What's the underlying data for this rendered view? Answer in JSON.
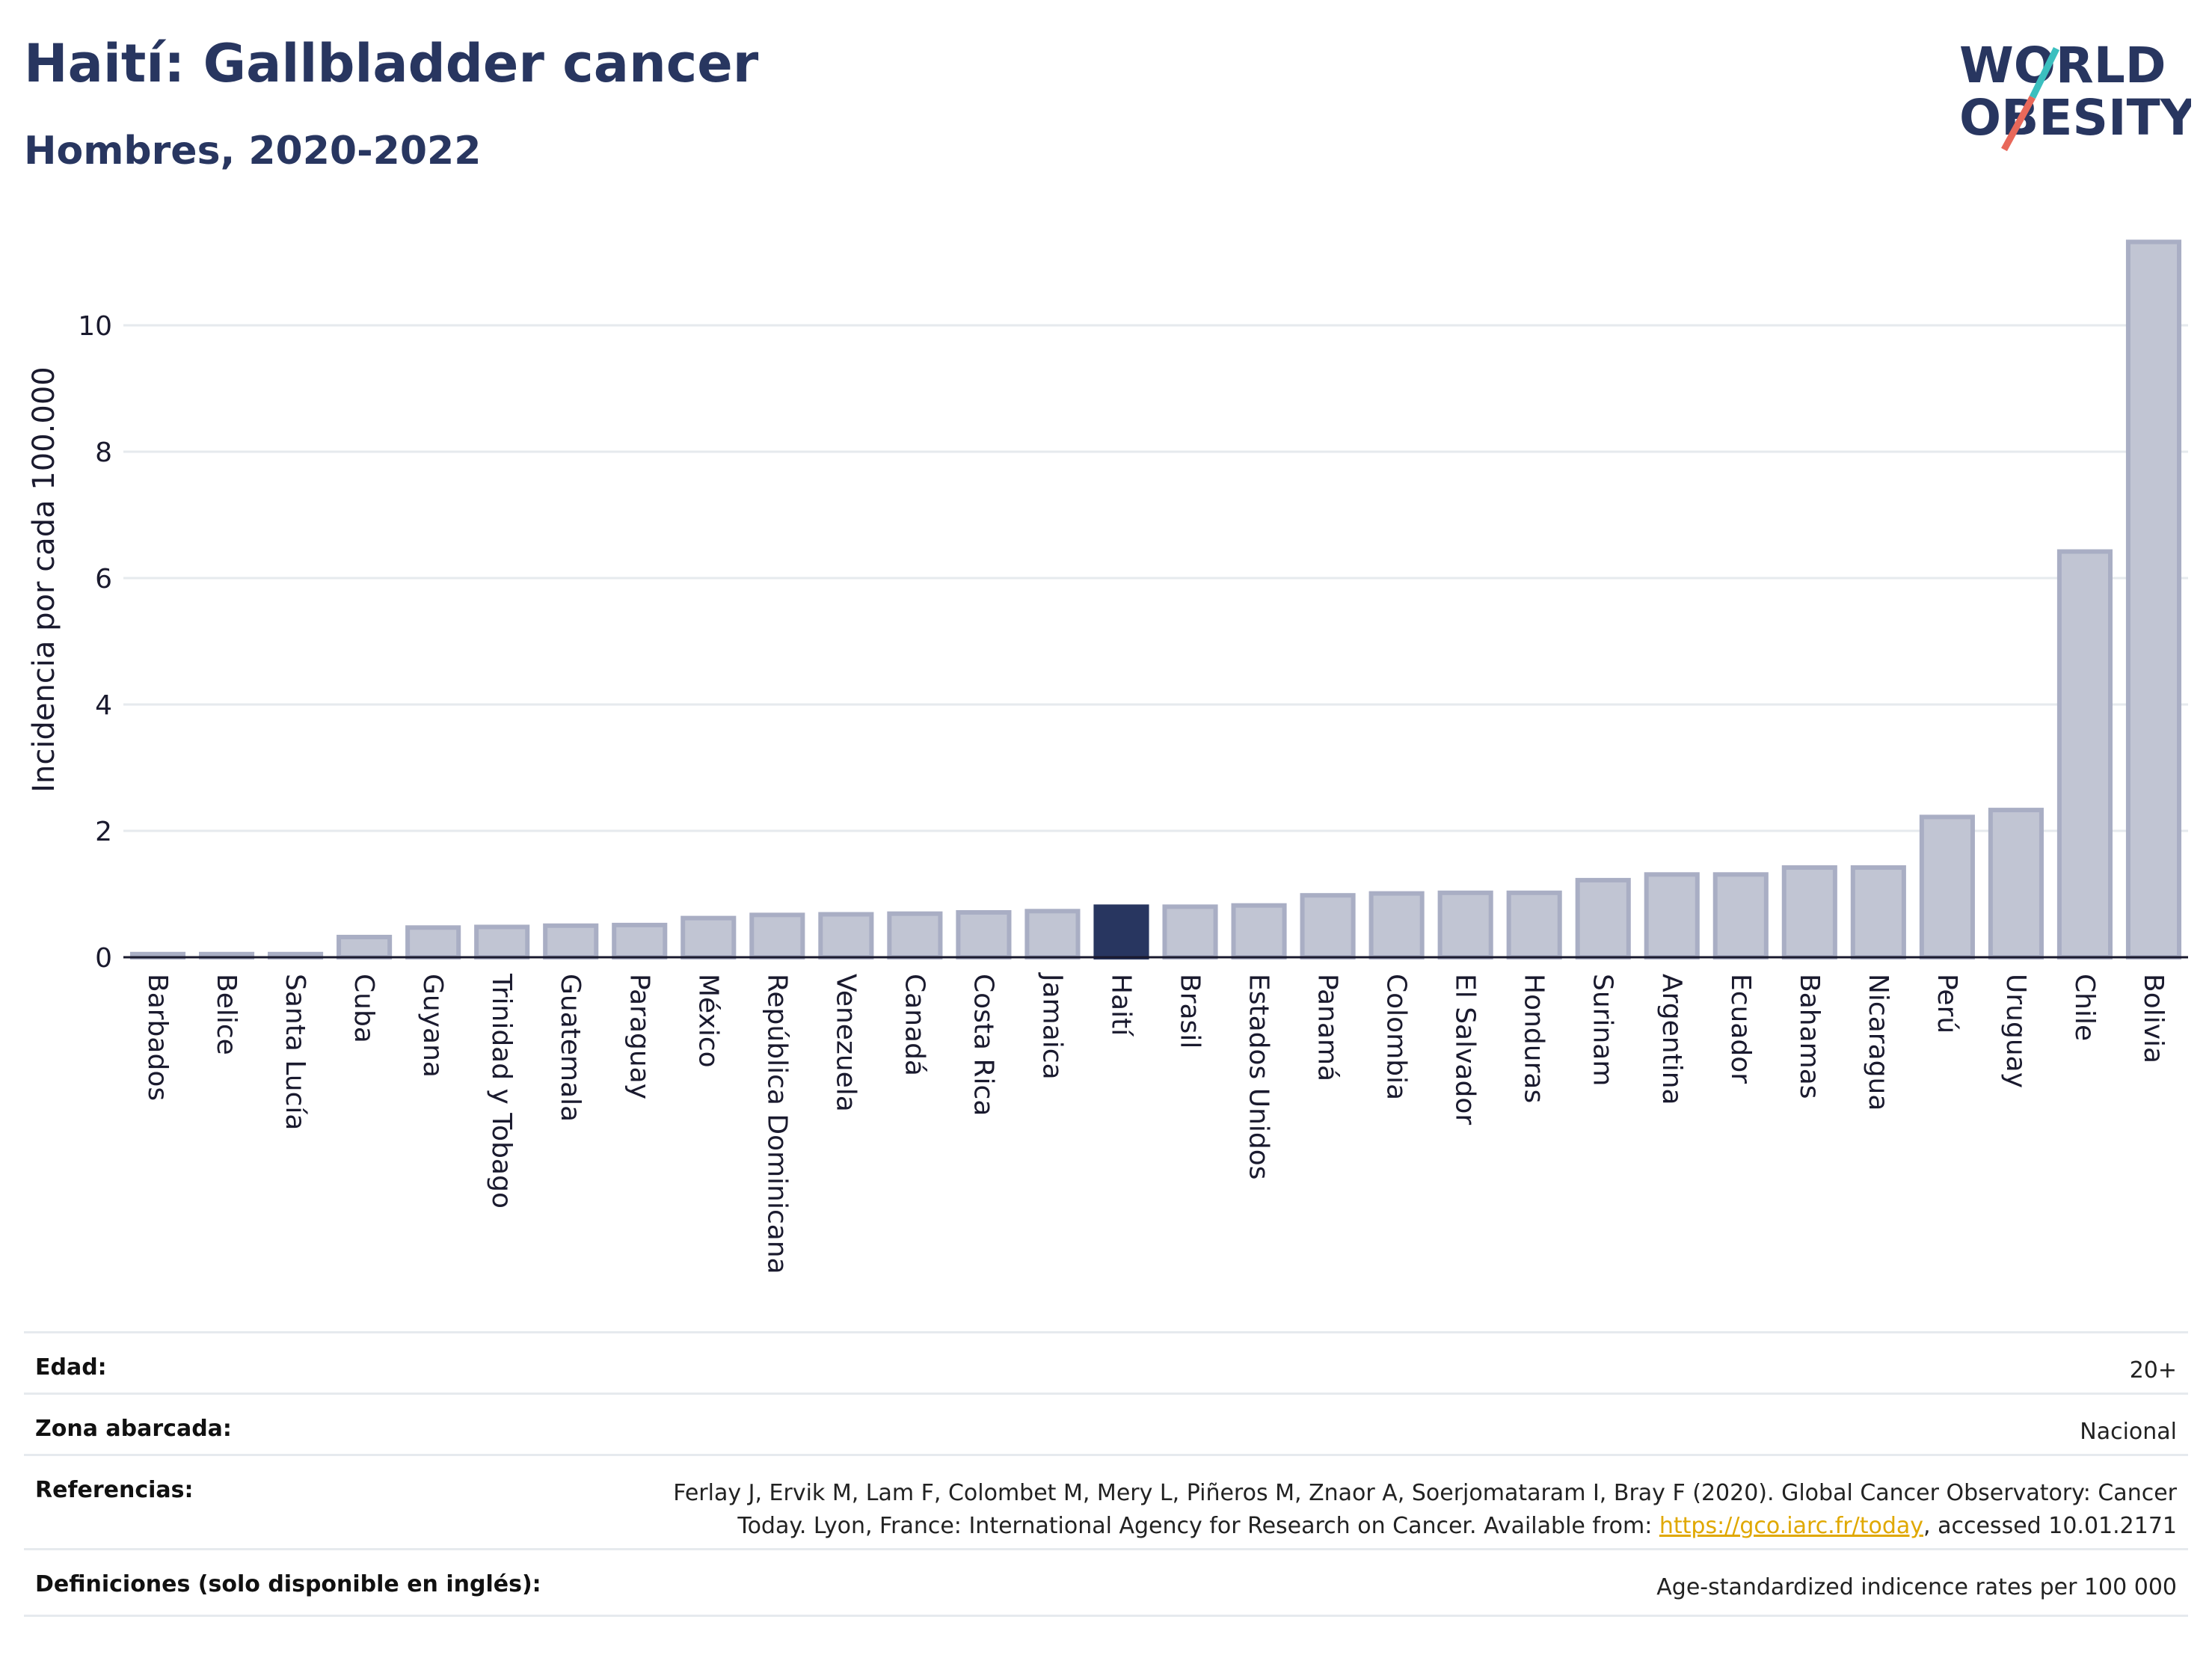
{
  "header": {
    "title": "Haití: Gallbladder cancer",
    "subtitle": "Hombres, 2020-2022"
  },
  "logo": {
    "line1": "WORLD",
    "line2": "OBESITY",
    "colors": {
      "text": "#283660",
      "slash_red": "#e8685a",
      "slash_teal": "#3bbfbf"
    }
  },
  "chart_data": {
    "type": "bar",
    "ylabel": "Incidencia por cada 100.000",
    "xlabel": "",
    "ylim": [
      0,
      11.5
    ],
    "yticks": [
      0,
      2,
      4,
      6,
      8,
      10
    ],
    "grid": true,
    "highlight": "Haití",
    "colors": {
      "bar": "#c1c5d3",
      "bar_border": "#a9aec4",
      "highlight": "#283660",
      "grid": "#e6eaee",
      "axis": "#1a1a2e"
    },
    "categories": [
      "Barbados",
      "Belice",
      "Santa Lucía",
      "Cuba",
      "Guyana",
      "Trinidad y Tobago",
      "Guatemala",
      "Paraguay",
      "México",
      "República Dominicana",
      "Venezuela",
      "Canadá",
      "Costa Rica",
      "Jamaica",
      "Haití",
      "Brasil",
      "Estados Unidos",
      "Panamá",
      "Colombia",
      "El Salvador",
      "Honduras",
      "Surinam",
      "Argentina",
      "Ecuador",
      "Bahamas",
      "Nicaragua",
      "Perú",
      "Uruguay",
      "Chile",
      "Bolivia"
    ],
    "values": [
      0.05,
      0.05,
      0.05,
      0.32,
      0.47,
      0.48,
      0.5,
      0.51,
      0.62,
      0.67,
      0.68,
      0.69,
      0.71,
      0.73,
      0.8,
      0.8,
      0.82,
      0.98,
      1.01,
      1.02,
      1.02,
      1.22,
      1.31,
      1.31,
      1.42,
      1.42,
      2.22,
      2.33,
      6.42,
      11.32
    ]
  },
  "info": {
    "age_label": "Edad:",
    "age_value": "20+",
    "coverage_label": "Zona abarcada:",
    "coverage_value": "Nacional",
    "references_label": "Referencias:",
    "references_text_1": "Ferlay J, Ervik M, Lam F, Colombet M, Mery L, Piñeros M, Znaor A, Soerjomataram I, Bray F (2020). Global Cancer Observatory: Cancer Today. Lyon, France: International Agency for Research on Cancer. Available from: ",
    "references_link": "https://gco.iarc.fr/today",
    "references_text_2": ", accessed 10.01.2171",
    "definitions_label": "Definiciones (solo disponible en inglés):",
    "definitions_value": "Age-standardized indicence rates per 100 000"
  }
}
